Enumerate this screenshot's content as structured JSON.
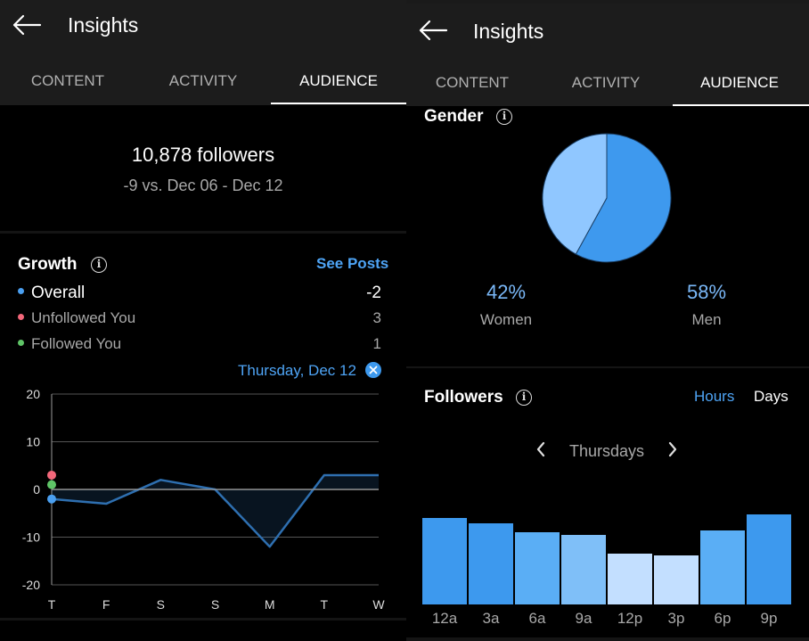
{
  "left": {
    "header": {
      "title": "Insights"
    },
    "tabs": [
      {
        "label": "CONTENT"
      },
      {
        "label": "ACTIVITY"
      },
      {
        "label": "AUDIENCE"
      }
    ],
    "summary": {
      "followers": "10,878 followers",
      "change": "-9 vs. Dec 06 - Dec 12"
    },
    "growth": {
      "title": "Growth",
      "see_posts": "See Posts",
      "legend": [
        {
          "label": "Overall",
          "value": "-2",
          "color": "#4a9ff0"
        },
        {
          "label": "Unfollowed You",
          "value": "3",
          "color": "#f2677a"
        },
        {
          "label": "Followed You",
          "value": "1",
          "color": "#5fc467"
        }
      ],
      "selected_day": "Thursday, Dec 12",
      "close_icon": "close-icon"
    },
    "chart_data": {
      "type": "line",
      "title": "Growth",
      "categories": [
        "T",
        "F",
        "S",
        "S",
        "M",
        "T",
        "W"
      ],
      "series": [
        {
          "name": "Overall",
          "values": [
            -2,
            -3,
            2,
            0,
            -12,
            3,
            3
          ],
          "color": "#2e6fb0"
        }
      ],
      "markers": [
        {
          "name": "Unfollowed You",
          "x": "T",
          "value": 3,
          "color": "#f2677a"
        },
        {
          "name": "Followed You",
          "x": "T",
          "value": 1,
          "color": "#5fc467"
        },
        {
          "name": "Overall",
          "x": "T",
          "value": -2,
          "color": "#4a9ff0"
        }
      ],
      "yticks": [
        20,
        10,
        0,
        -10,
        -20
      ],
      "ylim": [
        -20,
        20
      ],
      "grid": true
    }
  },
  "right": {
    "header": {
      "title": "Insights"
    },
    "tabs": [
      {
        "label": "CONTENT"
      },
      {
        "label": "ACTIVITY"
      },
      {
        "label": "AUDIENCE"
      }
    ],
    "gender": {
      "title": "Gender",
      "women_pct": "42%",
      "women_label": "Women",
      "men_pct": "58%",
      "men_label": "Men",
      "women_value": 42,
      "men_value": 58,
      "women_color": "#90c7ff",
      "men_color": "#3e99ee"
    },
    "followers": {
      "title": "Followers",
      "hours_label": "Hours",
      "days_label": "Days",
      "day_selector": "Thursdays"
    },
    "chart_data": {
      "type": "bar",
      "title": "Followers",
      "categories": [
        "12a",
        "3a",
        "6a",
        "9a",
        "12p",
        "3p",
        "6p",
        "9p"
      ],
      "values": [
        82,
        77,
        69,
        66,
        48,
        47,
        70,
        86
      ],
      "colors": [
        "#3d99ee",
        "#3d99ee",
        "#5aaef5",
        "#7fbff8",
        "#c3dfff",
        "#c3dfff",
        "#5aaef5",
        "#3d99ee"
      ],
      "ylim": [
        0,
        100
      ]
    }
  }
}
